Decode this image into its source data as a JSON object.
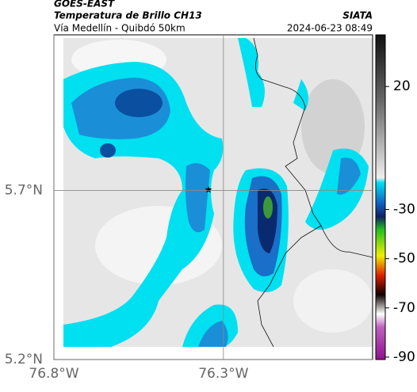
{
  "header": {
    "title": "GOES-EAST",
    "subtitle": "Temperatura de Brillo CH13",
    "source": "SIATA",
    "route": "Vía Medellín - Quibdó 50km",
    "timestamp": "2024-06-23 08:49"
  },
  "map": {
    "xlim": [
      -76.8,
      -75.86
    ],
    "ylim": [
      5.2,
      6.16
    ],
    "xticks": [
      {
        "value": -76.8,
        "label": "76.8°W"
      },
      {
        "value": -76.3,
        "label": "76.3°W"
      }
    ],
    "yticks": [
      {
        "value": 5.2,
        "label": "5.2°N"
      },
      {
        "value": 5.7,
        "label": "5.7°N"
      }
    ],
    "grid": true
  },
  "colorbar": {
    "lim": [
      -91,
      41
    ],
    "ticks": [
      20,
      -30,
      -50,
      -70,
      -90
    ]
  }
}
